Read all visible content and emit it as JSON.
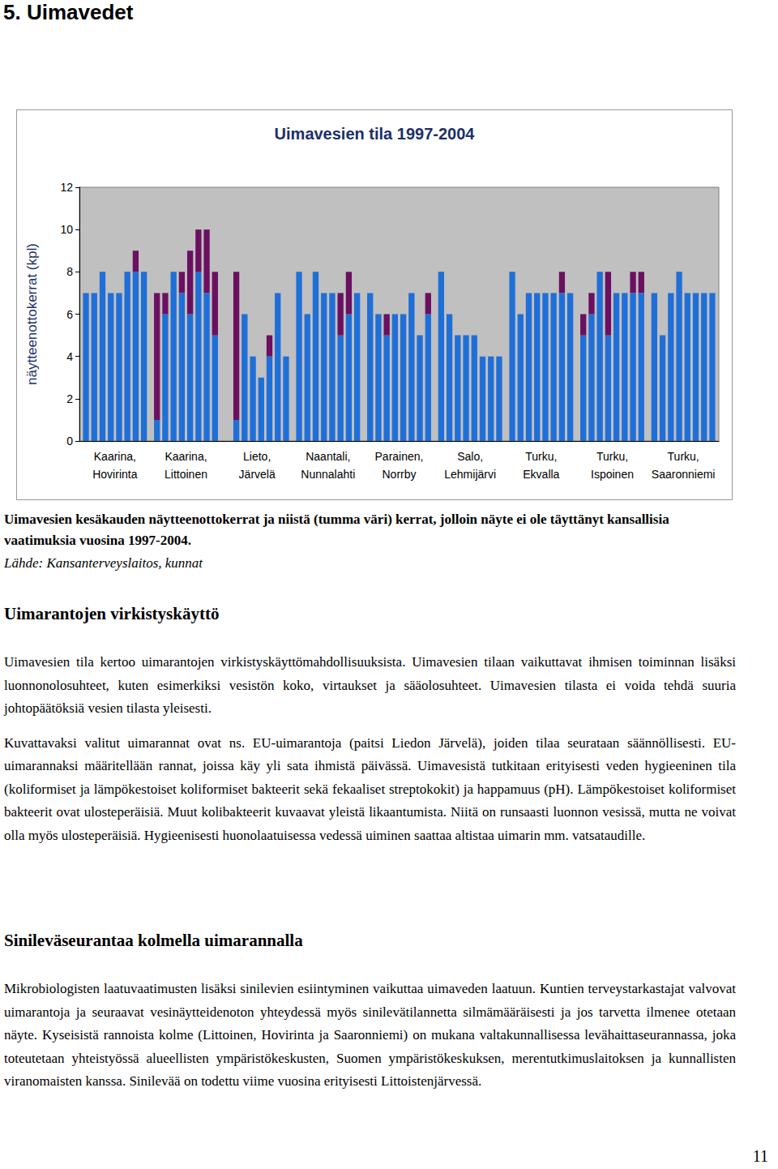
{
  "heading": "5. Uimavedet",
  "chart_data": {
    "type": "bar",
    "stacked": true,
    "title": "Uimavesien tila 1997-2004",
    "y_label": "näytteenottokerrat (kpl)",
    "categories": [
      "Kaarina,\nHovirinta",
      "Kaarina,\nLittoinen",
      "Lieto,\nJärvelä",
      "Naantali,\nNunnalahti",
      "Parainen,\nNorrby",
      "Salo,\nLehmijärvi",
      "Turku,\nEkvalla",
      "Turku,\nIspoinen",
      "Turku,\nSaaronniemi"
    ],
    "series": [
      {
        "color": "#1f6fd8",
        "values": [
          [
            7,
            7,
            8,
            7,
            7,
            8,
            8,
            8
          ],
          [
            1,
            6,
            8,
            7,
            6,
            8,
            7,
            5
          ],
          [
            0,
            1,
            6,
            4,
            3,
            4,
            7,
            4
          ],
          [
            8,
            6,
            8,
            7,
            7,
            5,
            6,
            7
          ],
          [
            7,
            6,
            5,
            6,
            6,
            7,
            5,
            6
          ],
          [
            8,
            6,
            5,
            5,
            5,
            4,
            4,
            4
          ],
          [
            8,
            6,
            7,
            7,
            7,
            7,
            7,
            7
          ],
          [
            5,
            6,
            8,
            5,
            7,
            7,
            7,
            7
          ],
          [
            7,
            5,
            7,
            8,
            7,
            7,
            7,
            7
          ]
        ]
      },
      {
        "color": "#6b1060",
        "values": [
          [
            0,
            0,
            0,
            0,
            0,
            0,
            1,
            0
          ],
          [
            6,
            1,
            0,
            1,
            3,
            2,
            3,
            3
          ],
          [
            0,
            7,
            0,
            0,
            0,
            1,
            0,
            0
          ],
          [
            0,
            0,
            0,
            0,
            0,
            2,
            2,
            0
          ],
          [
            0,
            0,
            1,
            0,
            0,
            0,
            0,
            1
          ],
          [
            0,
            0,
            0,
            0,
            0,
            0,
            0,
            0
          ],
          [
            0,
            0,
            0,
            0,
            0,
            0,
            1,
            0
          ],
          [
            1,
            1,
            0,
            3,
            0,
            0,
            1,
            1
          ],
          [
            0,
            0,
            0,
            0,
            0,
            0,
            0,
            0
          ]
        ]
      }
    ],
    "ylim": [
      0,
      12
    ],
    "yticks": [
      0,
      2,
      4,
      6,
      8,
      10,
      12
    ],
    "grid": false
  },
  "caption": "Uimavesien kesäkauden näytteenottokerrat ja niistä (tumma väri) kerrat, jolloin näyte ei ole täyttänyt kansallisia vaatimuksia vuosina 1997-2004.",
  "source": "Lähde: Kansanterveyslaitos, kunnat",
  "sections": [
    {
      "title": "Uimarantojen virkistyskäyttö",
      "paragraphs": [
        "Uimavesien tila kertoo uimarantojen virkistyskäyttömahdollisuuksista. Uimavesien tilaan vaikuttavat ihmisen toiminnan lisäksi luonnonolosuhteet, kuten esimerkiksi vesistön koko, virtaukset ja sääolosuhteet. Uimavesien tilasta ei voida tehdä suuria johtopäätöksiä vesien tilasta yleisesti.",
        "Kuvattavaksi valitut uimarannat ovat ns. EU-uimarantoja (paitsi Liedon Järvelä), joiden tilaa seurataan säännöllisesti. EU-uimarannaksi määritellään rannat, joissa käy yli sata ihmistä päivässä. Uimavesistä tutkitaan erityisesti veden hygieeninen tila (koliformiset ja lämpökestoiset koliformiset bakteerit sekä fekaaliset streptokokit) ja happamuus (pH). Lämpökestoiset koliformiset bakteerit ovat ulosteperäisiä. Muut kolibakteerit kuvaavat yleistä likaantumista. Niitä on runsaasti luonnon vesissä, mutta ne voivat olla myös ulosteperäisiä. Hygieenisesti huonolaatuisessa vedessä uiminen saattaa altistaa uimarin mm. vatsataudille."
      ]
    },
    {
      "title": "Sinileväseurantaa kolmella uimarannalla",
      "paragraphs": [
        "Mikrobiologisten laatuvaatimusten lisäksi sinilevien esiintyminen vaikuttaa uimaveden laatuun. Kuntien terveystarkastajat valvovat uimarantoja ja seuraavat vesinäytteidenoton yhteydessä myös sinilevätilannetta silmämääräisesti ja jos tarvetta ilmenee otetaan näyte. Kyseisistä rannoista kolme (Littoinen, Hovirinta ja Saaronniemi) on mukana valtakunnallisessa levähaittaseurannassa, joka toteutetaan yhteistyössä alueellisten ympäristökeskusten, Suomen ympäristökeskuksen, merentutkimuslaitoksen ja kunnallisten viranomaisten kanssa. Sinilevää on todettu viime vuosina erityisesti Littoistenjärvessä."
      ]
    }
  ],
  "page_number": "11"
}
